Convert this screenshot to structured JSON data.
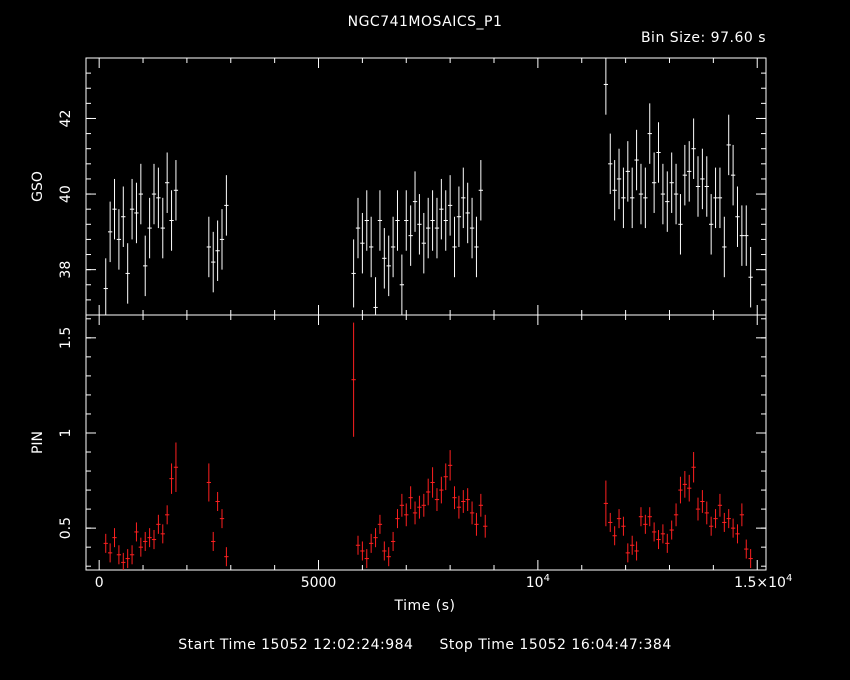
{
  "title": "NGC741MOSAICS_P1",
  "bin_size_label": "Bin Size:  97.60  s",
  "footer": {
    "start": "Start Time 15052 12:02:24:984",
    "stop": "Stop Time 15052 16:04:47:384"
  },
  "colors": {
    "background": "#000000",
    "axes": "#ffffff",
    "gso": "#ffffff",
    "pin": "#ff2020"
  },
  "chart_data": [
    {
      "type": "scatter",
      "error_bars": true,
      "title": "NGC741MOSAICS_P1",
      "ylabel": "GSO",
      "xlim": [
        -300,
        15200
      ],
      "ylim": [
        36.8,
        43.6
      ],
      "yticks": [
        38,
        40,
        42
      ],
      "ytick_labels": [
        "38",
        "40",
        "42"
      ],
      "xerr": 49,
      "points": [
        [
          150,
          37.5,
          0.8
        ],
        [
          250,
          39.0,
          0.8
        ],
        [
          350,
          39.6,
          0.8
        ],
        [
          450,
          38.8,
          0.8
        ],
        [
          550,
          39.4,
          0.8
        ],
        [
          650,
          37.9,
          0.8
        ],
        [
          750,
          39.6,
          0.8
        ],
        [
          850,
          39.5,
          0.8
        ],
        [
          950,
          40.0,
          0.8
        ],
        [
          1050,
          38.1,
          0.8
        ],
        [
          1150,
          39.1,
          0.8
        ],
        [
          1250,
          40.0,
          0.8
        ],
        [
          1350,
          39.9,
          0.8
        ],
        [
          1450,
          39.1,
          0.8
        ],
        [
          1550,
          40.3,
          0.8
        ],
        [
          1650,
          39.3,
          0.8
        ],
        [
          1750,
          40.1,
          0.8
        ],
        [
          2500,
          38.6,
          0.8
        ],
        [
          2600,
          38.2,
          0.8
        ],
        [
          2700,
          38.5,
          0.8
        ],
        [
          2800,
          38.8,
          0.8
        ],
        [
          2900,
          39.7,
          0.8
        ],
        [
          5800,
          37.9,
          0.9
        ],
        [
          5900,
          39.1,
          0.8
        ],
        [
          6000,
          38.7,
          0.8
        ],
        [
          6100,
          39.3,
          0.8
        ],
        [
          6200,
          38.6,
          0.8
        ],
        [
          6300,
          37.0,
          0.8
        ],
        [
          6400,
          39.3,
          0.8
        ],
        [
          6500,
          38.3,
          0.8
        ],
        [
          6600,
          38.1,
          0.8
        ],
        [
          6700,
          38.6,
          0.8
        ],
        [
          6800,
          39.3,
          0.8
        ],
        [
          6900,
          37.6,
          0.8
        ],
        [
          7000,
          39.3,
          0.8
        ],
        [
          7100,
          38.9,
          0.8
        ],
        [
          7200,
          39.8,
          0.8
        ],
        [
          7300,
          39.2,
          0.8
        ],
        [
          7400,
          38.7,
          0.8
        ],
        [
          7500,
          39.1,
          0.8
        ],
        [
          7600,
          39.3,
          0.8
        ],
        [
          7700,
          39.1,
          0.8
        ],
        [
          7800,
          39.6,
          0.8
        ],
        [
          7900,
          39.3,
          0.8
        ],
        [
          8000,
          39.7,
          0.8
        ],
        [
          8100,
          38.6,
          0.8
        ],
        [
          8200,
          39.4,
          0.8
        ],
        [
          8300,
          39.9,
          0.8
        ],
        [
          8400,
          39.5,
          0.8
        ],
        [
          8500,
          39.1,
          0.8
        ],
        [
          8600,
          38.6,
          0.8
        ],
        [
          8700,
          40.1,
          0.8
        ],
        [
          11550,
          42.9,
          0.8
        ],
        [
          11650,
          40.8,
          0.8
        ],
        [
          11750,
          40.1,
          0.8
        ],
        [
          11850,
          40.4,
          0.8
        ],
        [
          11950,
          39.9,
          0.8
        ],
        [
          12050,
          40.6,
          0.8
        ],
        [
          12150,
          39.9,
          0.8
        ],
        [
          12250,
          40.9,
          0.8
        ],
        [
          12350,
          40.0,
          0.8
        ],
        [
          12450,
          39.9,
          0.8
        ],
        [
          12550,
          41.6,
          0.8
        ],
        [
          12650,
          40.3,
          0.8
        ],
        [
          12750,
          41.1,
          0.8
        ],
        [
          12850,
          40.0,
          0.8
        ],
        [
          12950,
          39.8,
          0.8
        ],
        [
          13050,
          40.3,
          0.8
        ],
        [
          13150,
          40.0,
          0.8
        ],
        [
          13250,
          39.2,
          0.8
        ],
        [
          13350,
          40.5,
          0.8
        ],
        [
          13450,
          40.6,
          0.8
        ],
        [
          13550,
          41.2,
          0.8
        ],
        [
          13650,
          40.2,
          0.8
        ],
        [
          13750,
          40.4,
          0.8
        ],
        [
          13850,
          40.2,
          0.8
        ],
        [
          13950,
          39.2,
          0.8
        ],
        [
          14050,
          39.9,
          0.8
        ],
        [
          14150,
          39.9,
          0.8
        ],
        [
          14250,
          38.6,
          0.8
        ],
        [
          14350,
          41.3,
          0.8
        ],
        [
          14450,
          40.5,
          0.8
        ],
        [
          14550,
          39.4,
          0.8
        ],
        [
          14650,
          38.9,
          0.8
        ],
        [
          14750,
          38.9,
          0.8
        ],
        [
          14850,
          37.8,
          0.8
        ]
      ]
    },
    {
      "type": "scatter",
      "error_bars": true,
      "xlabel": "Time (s)",
      "ylabel": "PIN",
      "xlim": [
        -300,
        15200
      ],
      "ylim": [
        0.28,
        1.62
      ],
      "yticks": [
        0.5,
        1,
        1.5
      ],
      "ytick_labels": [
        "0.5",
        "1",
        "1.5"
      ],
      "xticks": [
        0,
        5000,
        10000,
        15000
      ],
      "xtick_labels": [
        "0",
        "5000",
        "10⁴",
        "1.5×10⁴"
      ],
      "xerr": 49,
      "points": [
        [
          150,
          0.42,
          0.05
        ],
        [
          250,
          0.37,
          0.05
        ],
        [
          350,
          0.45,
          0.05
        ],
        [
          450,
          0.36,
          0.05
        ],
        [
          550,
          0.32,
          0.05
        ],
        [
          650,
          0.34,
          0.05
        ],
        [
          750,
          0.36,
          0.05
        ],
        [
          850,
          0.48,
          0.05
        ],
        [
          950,
          0.4,
          0.05
        ],
        [
          1050,
          0.43,
          0.05
        ],
        [
          1150,
          0.45,
          0.05
        ],
        [
          1250,
          0.44,
          0.05
        ],
        [
          1350,
          0.52,
          0.05
        ],
        [
          1450,
          0.47,
          0.05
        ],
        [
          1550,
          0.57,
          0.05
        ],
        [
          1650,
          0.76,
          0.08
        ],
        [
          1750,
          0.82,
          0.13
        ],
        [
          2500,
          0.74,
          0.1
        ],
        [
          2600,
          0.43,
          0.05
        ],
        [
          2700,
          0.64,
          0.05
        ],
        [
          2800,
          0.55,
          0.05
        ],
        [
          2900,
          0.35,
          0.05
        ],
        [
          5800,
          1.28,
          0.3
        ],
        [
          5900,
          0.41,
          0.05
        ],
        [
          6000,
          0.38,
          0.05
        ],
        [
          6100,
          0.34,
          0.05
        ],
        [
          6200,
          0.42,
          0.05
        ],
        [
          6300,
          0.45,
          0.05
        ],
        [
          6400,
          0.52,
          0.05
        ],
        [
          6500,
          0.38,
          0.05
        ],
        [
          6600,
          0.35,
          0.05
        ],
        [
          6700,
          0.43,
          0.05
        ],
        [
          6800,
          0.55,
          0.05
        ],
        [
          6900,
          0.62,
          0.06
        ],
        [
          7000,
          0.57,
          0.06
        ],
        [
          7100,
          0.66,
          0.06
        ],
        [
          7200,
          0.58,
          0.06
        ],
        [
          7300,
          0.61,
          0.06
        ],
        [
          7400,
          0.62,
          0.06
        ],
        [
          7500,
          0.69,
          0.07
        ],
        [
          7600,
          0.74,
          0.08
        ],
        [
          7700,
          0.65,
          0.06
        ],
        [
          7800,
          0.7,
          0.07
        ],
        [
          7900,
          0.77,
          0.07
        ],
        [
          8000,
          0.83,
          0.08
        ],
        [
          8100,
          0.66,
          0.06
        ],
        [
          8200,
          0.61,
          0.06
        ],
        [
          8300,
          0.64,
          0.06
        ],
        [
          8400,
          0.65,
          0.06
        ],
        [
          8500,
          0.58,
          0.06
        ],
        [
          8600,
          0.52,
          0.06
        ],
        [
          8700,
          0.62,
          0.06
        ],
        [
          8800,
          0.51,
          0.06
        ],
        [
          11550,
          0.63,
          0.12
        ],
        [
          11650,
          0.53,
          0.05
        ],
        [
          11750,
          0.46,
          0.05
        ],
        [
          11850,
          0.55,
          0.05
        ],
        [
          11950,
          0.51,
          0.05
        ],
        [
          12050,
          0.37,
          0.05
        ],
        [
          12150,
          0.41,
          0.05
        ],
        [
          12250,
          0.38,
          0.05
        ],
        [
          12350,
          0.56,
          0.05
        ],
        [
          12450,
          0.52,
          0.05
        ],
        [
          12550,
          0.56,
          0.05
        ],
        [
          12650,
          0.48,
          0.05
        ],
        [
          12750,
          0.44,
          0.05
        ],
        [
          12850,
          0.47,
          0.05
        ],
        [
          12950,
          0.42,
          0.05
        ],
        [
          13050,
          0.49,
          0.05
        ],
        [
          13150,
          0.57,
          0.06
        ],
        [
          13250,
          0.7,
          0.07
        ],
        [
          13350,
          0.73,
          0.07
        ],
        [
          13450,
          0.71,
          0.07
        ],
        [
          13550,
          0.82,
          0.08
        ],
        [
          13650,
          0.6,
          0.06
        ],
        [
          13750,
          0.64,
          0.06
        ],
        [
          13850,
          0.58,
          0.06
        ],
        [
          13950,
          0.51,
          0.05
        ],
        [
          14050,
          0.55,
          0.05
        ],
        [
          14150,
          0.62,
          0.06
        ],
        [
          14250,
          0.53,
          0.05
        ],
        [
          14350,
          0.55,
          0.05
        ],
        [
          14450,
          0.5,
          0.05
        ],
        [
          14550,
          0.47,
          0.05
        ],
        [
          14650,
          0.57,
          0.06
        ],
        [
          14750,
          0.39,
          0.05
        ],
        [
          14850,
          0.34,
          0.05
        ]
      ]
    }
  ]
}
